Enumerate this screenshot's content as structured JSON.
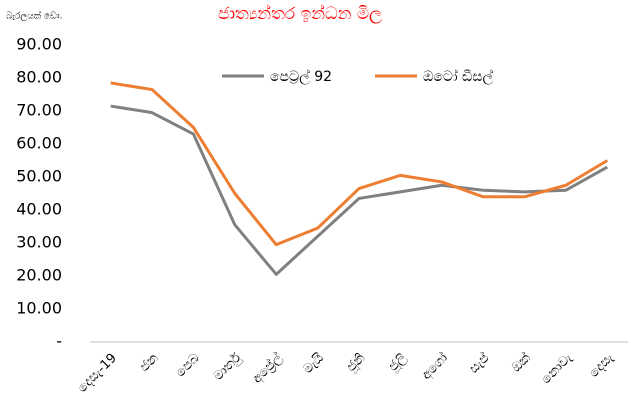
{
  "chart_data": {
    "type": "line",
    "title": "ජාත්‍යන්තර ඉන්ධන මිල",
    "y_axis_label": "බැරලයක් ඩො.",
    "categories": [
      "දෙසැ-19",
      "ජන",
      "පෙබ",
      "මාර්තු",
      "අප්‍රේල්",
      "මැයි",
      "ජූනි",
      "ජූලි",
      "අගෝ",
      "සැප්",
      "ඔක්",
      "නොවැ",
      "දෙසැ"
    ],
    "series": [
      {
        "name": "පෙට්‍රල් 92",
        "color": "#808080",
        "values": [
          71.5,
          69.5,
          63,
          35.5,
          20.5,
          32,
          43.5,
          45.5,
          47.5,
          46,
          45.5,
          46,
          53
        ]
      },
      {
        "name": "ඔටෝ ඩීසල්",
        "color": "#ed7d31",
        "values": [
          78.5,
          76.5,
          65,
          45,
          29.5,
          34.5,
          46.5,
          50.5,
          48.5,
          44,
          44,
          47.5,
          55
        ]
      }
    ],
    "ylim": [
      0,
      90
    ],
    "yticks": [
      {
        "value": 0,
        "label": "-"
      },
      {
        "value": 10,
        "label": "10.00"
      },
      {
        "value": 20,
        "label": "20.00"
      },
      {
        "value": 30,
        "label": "30.00"
      },
      {
        "value": 40,
        "label": "40.00"
      },
      {
        "value": 50,
        "label": "50.00"
      },
      {
        "value": 60,
        "label": "60.00"
      },
      {
        "value": 70,
        "label": "70.00"
      },
      {
        "value": 80,
        "label": "80.00"
      },
      {
        "value": 90,
        "label": "90.00"
      }
    ],
    "grid": false,
    "legend": "top"
  }
}
